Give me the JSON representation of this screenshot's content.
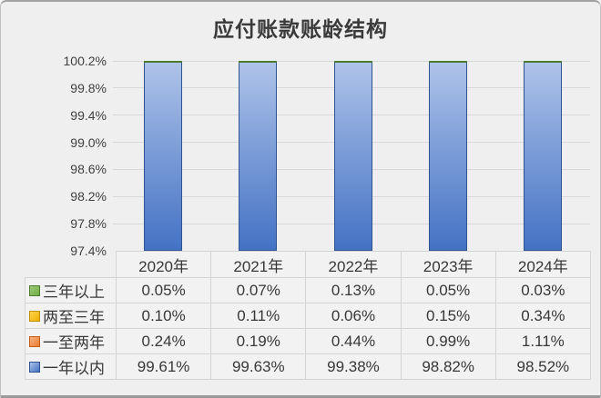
{
  "title": "应付账款账龄结构",
  "colors": {
    "page_bg": "#efefef",
    "frame_border": "#a8a8a8",
    "grid_line": "#d8d8d8",
    "axis_text": "#3f3f3f",
    "table_text": "#383838",
    "cell_bg": "#f2f2f2",
    "cell_border": "#d4d4d4",
    "title_text": "#3a3a3a"
  },
  "chart_data": {
    "type": "bar",
    "stacked": true,
    "title": "应付账款账龄结构",
    "categories": [
      "2020年",
      "2021年",
      "2022年",
      "2023年",
      "2024年"
    ],
    "series": [
      {
        "name": "三年以上",
        "values": [
          0.05,
          0.07,
          0.13,
          0.05,
          0.03
        ],
        "color": "#70AD47",
        "color_light": "#9CCB76",
        "border": "#4E7A2D"
      },
      {
        "name": "两至三年",
        "values": [
          0.1,
          0.11,
          0.06,
          0.15,
          0.34
        ],
        "color": "#EDB100",
        "color_light": "#FFD34D",
        "border": "#BF8F00"
      },
      {
        "name": "一至两年",
        "values": [
          0.24,
          0.19,
          0.44,
          0.99,
          1.11
        ],
        "color": "#ED7D31",
        "color_light": "#F5B183",
        "border": "#C55A11"
      },
      {
        "name": "一年以内",
        "values": [
          99.61,
          99.63,
          99.38,
          98.82,
          98.52
        ],
        "color": "#4472C4",
        "color_light": "#AEC3E9",
        "border": "#2E5395"
      }
    ],
    "ylim": [
      97.4,
      100.2
    ],
    "ytick_step": 0.4,
    "ytick_labels": [
      "97.4%",
      "97.8%",
      "98.2%",
      "98.6%",
      "99.0%",
      "99.4%",
      "99.8%",
      "100.2%"
    ],
    "value_suffix": "%",
    "grid": true,
    "legend_position": "table-left",
    "stack_order_bottom_to_top": [
      "一年以内",
      "一至两年",
      "两至三年",
      "三年以上"
    ]
  }
}
